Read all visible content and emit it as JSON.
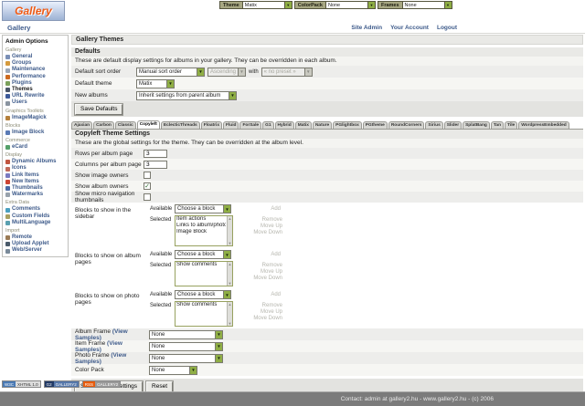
{
  "top_bar": {
    "groups": [
      {
        "label": "Theme",
        "value": "Matix"
      },
      {
        "label": "ColorPack",
        "value": "None"
      },
      {
        "label": "Frames",
        "value": "None"
      }
    ]
  },
  "header": {
    "logo": "Gallery",
    "breadcrumb": "Gallery",
    "links": [
      {
        "label": "Site Admin"
      },
      {
        "label": "Your Account"
      },
      {
        "label": "Logout"
      }
    ]
  },
  "sidebar": {
    "title": "Admin Options",
    "sections": [
      {
        "label": "Gallery",
        "items": [
          {
            "label": "General",
            "icon": "general",
            "color": "#7a8fb5"
          },
          {
            "label": "Groups",
            "icon": "groups",
            "color": "#d59a3c"
          },
          {
            "label": "Maintenance",
            "icon": "maintenance",
            "color": "#9aa7b8"
          },
          {
            "label": "Performance",
            "icon": "performance",
            "color": "#cc6a1f"
          },
          {
            "label": "Plugins",
            "icon": "plugins",
            "color": "#7aa05a"
          },
          {
            "label": "Themes",
            "icon": "themes",
            "color": "#4a5568",
            "active": true
          },
          {
            "label": "URL Rewrite",
            "icon": "url-rewrite",
            "color": "#3d5a99"
          },
          {
            "label": "Users",
            "icon": "users",
            "color": "#8a94a0"
          }
        ]
      },
      {
        "label": "Graphics Toolkits",
        "items": [
          {
            "label": "ImageMagick",
            "icon": "imagemagick",
            "color": "#b5803c"
          }
        ]
      },
      {
        "label": "Blocks",
        "items": [
          {
            "label": "Image Block",
            "icon": "image-block",
            "color": "#5a7ab5"
          }
        ]
      },
      {
        "label": "Commerce",
        "items": [
          {
            "label": "eCard",
            "icon": "ecard",
            "color": "#55a06a"
          }
        ]
      },
      {
        "label": "Display",
        "items": [
          {
            "label": "Dynamic Albums",
            "icon": "dynamic-albums",
            "color": "#c05540"
          },
          {
            "label": "Icons",
            "icon": "icons",
            "color": "#c06a5a"
          },
          {
            "label": "Link Items",
            "icon": "link-items",
            "color": "#7a7ac0"
          },
          {
            "label": "New Items",
            "icon": "new-items",
            "color": "#cc4433"
          },
          {
            "label": "Thumbnails",
            "icon": "thumbnails",
            "color": "#4a6aa5"
          },
          {
            "label": "Watermarks",
            "icon": "watermarks",
            "color": "#98a2ac"
          }
        ]
      },
      {
        "label": "Extra Data",
        "items": [
          {
            "label": "Comments",
            "icon": "comments",
            "color": "#4aa0c0"
          },
          {
            "label": "Custom Fields",
            "icon": "custom-fields",
            "color": "#a8a060"
          },
          {
            "label": "MultiLanguage",
            "icon": "multilanguage",
            "color": "#5aa0b0"
          }
        ]
      },
      {
        "label": "Import",
        "items": [
          {
            "label": "Remote",
            "icon": "remote",
            "color": "#9a7a55"
          },
          {
            "label": "Upload Applet",
            "icon": "upload-applet",
            "color": "#4a5a6a"
          },
          {
            "label": "Web/Server",
            "icon": "web-server",
            "color": "#7a8a9a"
          }
        ]
      }
    ]
  },
  "main": {
    "title": "Gallery Themes",
    "defaults": {
      "section_title": "Defaults",
      "description": "These are default display settings for albums in your gallery. They can be overridden in each album.",
      "sort_label": "Default sort order",
      "sort_value": "Manual sort order",
      "order_value": "Ascending",
      "with_label": "with",
      "preset_value": "« no preset »",
      "theme_label": "Default theme",
      "theme_value": "Matix",
      "new_albums_label": "New albums",
      "new_albums_value": "Inherit settings from parent album",
      "save_button": "Save Defaults"
    },
    "tabs": [
      {
        "label": "Ajaxian"
      },
      {
        "label": "Carbon"
      },
      {
        "label": "Classic"
      },
      {
        "label": "Copyleft",
        "active": true
      },
      {
        "label": "EclecticThreads"
      },
      {
        "label": "Floatrix"
      },
      {
        "label": "Fluid"
      },
      {
        "label": "ForSale"
      },
      {
        "label": "G1"
      },
      {
        "label": "Hybrid"
      },
      {
        "label": "Matix"
      },
      {
        "label": "Nature"
      },
      {
        "label": "PGlightbox"
      },
      {
        "label": "PGtheme"
      },
      {
        "label": "RoundCorners"
      },
      {
        "label": "Sirius"
      },
      {
        "label": "Slider"
      },
      {
        "label": "SplatBang"
      },
      {
        "label": "Tan"
      },
      {
        "label": "Tile"
      },
      {
        "label": "WordpressEmbedded"
      }
    ],
    "settings": {
      "section_title": "Copyleft Theme Settings",
      "description": "These are the global settings for the theme. They can be overridden at the album level.",
      "rows_label": "Rows per album page",
      "rows_value": "3",
      "cols_label": "Columns per album page",
      "cols_value": "3",
      "show_image_owners_label": "Show image owners",
      "show_album_owners_label": "Show album owners",
      "show_micro_nav_label": "Show micro navigation thumbnails",
      "available_label": "Available",
      "selected_label": "Selected",
      "choose_block_value": "Choose a block",
      "add_label": "Add",
      "remove_label": "Remove",
      "move_up_label": "Move Up",
      "move_down_label": "Move Down",
      "blocks_sidebar_label": "Blocks to show in the sidebar",
      "blocks_sidebar_items": [
        "Item actions",
        "Links to album/photo peers",
        "Image Block"
      ],
      "blocks_album_label": "Blocks to show on album pages",
      "blocks_album_items": [
        "Show comments"
      ],
      "blocks_photo_label": "Blocks to show on photo pages",
      "blocks_photo_items": [
        "Show comments"
      ],
      "album_frame_label": "Album Frame",
      "item_frame_label": "Item Frame",
      "photo_frame_label": "Photo Frame",
      "view_samples_label": "(View Samples)",
      "album_frame_value": "None",
      "item_frame_value": "None",
      "photo_frame_value": "None",
      "color_pack_label": "Color Pack",
      "color_pack_value": "None",
      "save_button": "Save Theme Settings",
      "reset_button": "Reset"
    }
  },
  "footer": {
    "badges": [
      {
        "left": "W3C",
        "right": "XHTML 1.0",
        "left_bg": "#4a7ab5",
        "left_color": "#ffffff",
        "right_bg": "#dddddd",
        "right_color": "#333333"
      },
      {
        "left": "G2",
        "right": "GALLERY2",
        "left_bg": "#223a66",
        "left_color": "#ffffff",
        "right_bg": "#5577aa",
        "right_color": "#ffffff"
      },
      {
        "left": "RSS",
        "right": "GALLERY2",
        "left_bg": "#e85c0c",
        "left_color": "#ffffff",
        "right_bg": "#999999",
        "right_color": "#ffffff"
      }
    ],
    "text": "Contact: admin at gallery2.hu - www.gallery2.hu - (c) 2006"
  },
  "colors": {
    "accent_green": "#8fae45",
    "link_blue": "#3d5a8a",
    "bar_gray": "#7b7b7b"
  }
}
